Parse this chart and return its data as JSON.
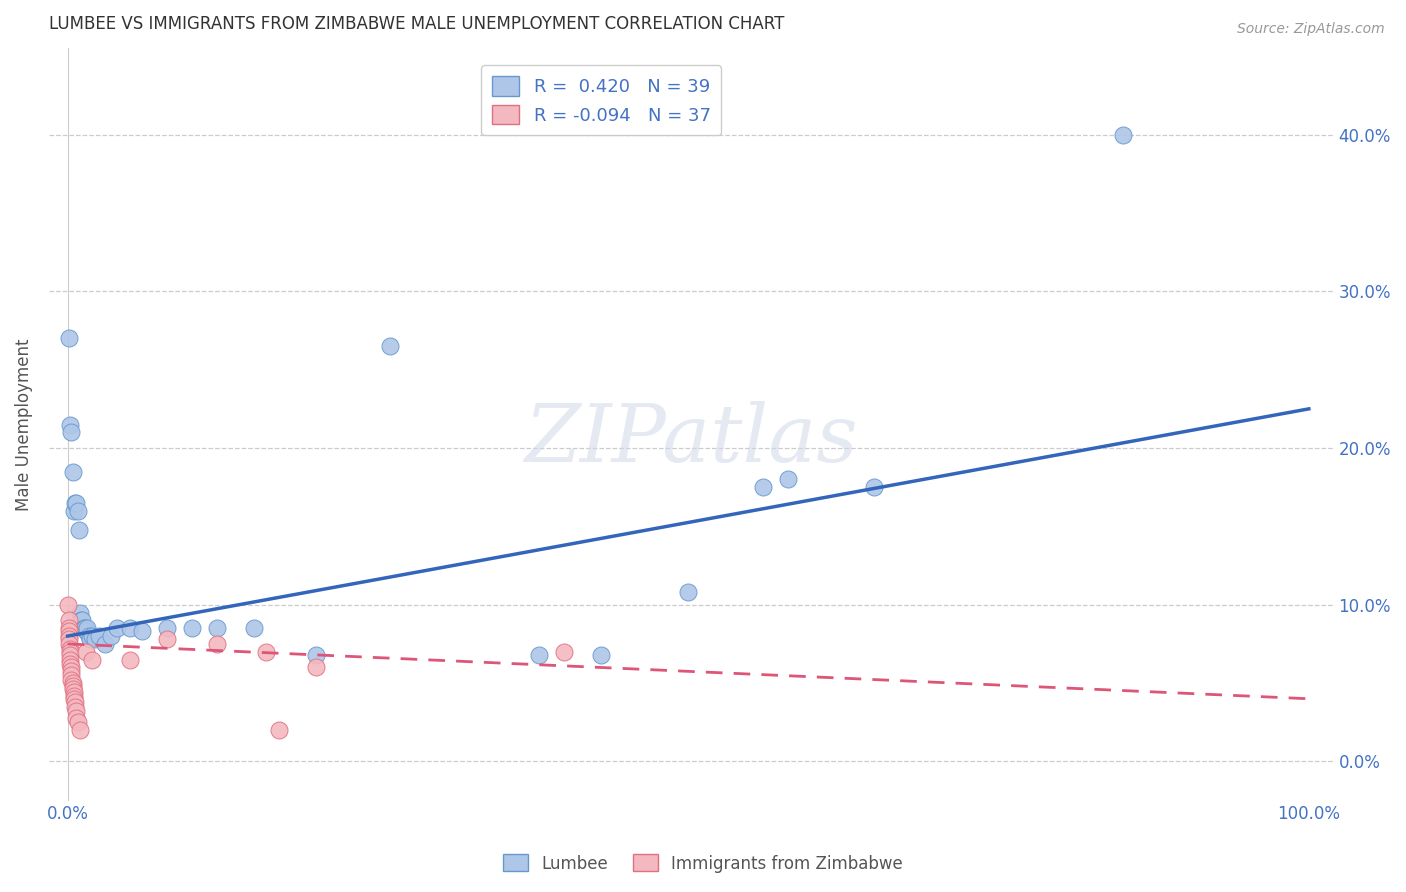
{
  "title": "LUMBEE VS IMMIGRANTS FROM ZIMBABWE MALE UNEMPLOYMENT CORRELATION CHART",
  "source": "Source: ZipAtlas.com",
  "ylabel": "Male Unemployment",
  "watermark": "ZIPatlas",
  "lumbee": {
    "R": 0.42,
    "N": 39,
    "color": "#aec6e8",
    "edge_color": "#6699cc",
    "line_color": "#3366bb",
    "points": [
      [
        0.001,
        0.27
      ],
      [
        0.002,
        0.215
      ],
      [
        0.003,
        0.21
      ],
      [
        0.004,
        0.185
      ],
      [
        0.005,
        0.16
      ],
      [
        0.006,
        0.165
      ],
      [
        0.007,
        0.165
      ],
      [
        0.008,
        0.16
      ],
      [
        0.009,
        0.148
      ],
      [
        0.01,
        0.095
      ],
      [
        0.011,
        0.09
      ],
      [
        0.012,
        0.09
      ],
      [
        0.013,
        0.085
      ],
      [
        0.014,
        0.085
      ],
      [
        0.015,
        0.083
      ],
      [
        0.016,
        0.085
      ],
      [
        0.017,
        0.08
      ],
      [
        0.018,
        0.078
      ],
      [
        0.02,
        0.08
      ],
      [
        0.022,
        0.078
      ],
      [
        0.025,
        0.08
      ],
      [
        0.03,
        0.075
      ],
      [
        0.035,
        0.08
      ],
      [
        0.04,
        0.085
      ],
      [
        0.05,
        0.085
      ],
      [
        0.06,
        0.083
      ],
      [
        0.08,
        0.085
      ],
      [
        0.1,
        0.085
      ],
      [
        0.12,
        0.085
      ],
      [
        0.15,
        0.085
      ],
      [
        0.2,
        0.068
      ],
      [
        0.26,
        0.265
      ],
      [
        0.38,
        0.068
      ],
      [
        0.43,
        0.068
      ],
      [
        0.5,
        0.108
      ],
      [
        0.56,
        0.175
      ],
      [
        0.58,
        0.18
      ],
      [
        0.65,
        0.175
      ],
      [
        0.85,
        0.4
      ]
    ],
    "trend_x": [
      0.0,
      1.0
    ],
    "trend_y": [
      0.08,
      0.225
    ]
  },
  "zimbabwe": {
    "R": -0.094,
    "N": 37,
    "color": "#f4b8c0",
    "edge_color": "#e07080",
    "line_color": "#dd5577",
    "points": [
      [
        0.0,
        0.1
      ],
      [
        0.001,
        0.09
      ],
      [
        0.001,
        0.085
      ],
      [
        0.001,
        0.083
      ],
      [
        0.001,
        0.08
      ],
      [
        0.001,
        0.078
      ],
      [
        0.001,
        0.075
      ],
      [
        0.002,
        0.072
      ],
      [
        0.002,
        0.07
      ],
      [
        0.002,
        0.068
      ],
      [
        0.002,
        0.065
      ],
      [
        0.002,
        0.062
      ],
      [
        0.003,
        0.06
      ],
      [
        0.003,
        0.058
      ],
      [
        0.003,
        0.055
      ],
      [
        0.003,
        0.052
      ],
      [
        0.004,
        0.05
      ],
      [
        0.004,
        0.048
      ],
      [
        0.004,
        0.046
      ],
      [
        0.005,
        0.044
      ],
      [
        0.005,
        0.042
      ],
      [
        0.005,
        0.04
      ],
      [
        0.006,
        0.038
      ],
      [
        0.006,
        0.035
      ],
      [
        0.007,
        0.032
      ],
      [
        0.007,
        0.028
      ],
      [
        0.008,
        0.025
      ],
      [
        0.01,
        0.02
      ],
      [
        0.015,
        0.07
      ],
      [
        0.02,
        0.065
      ],
      [
        0.05,
        0.065
      ],
      [
        0.08,
        0.078
      ],
      [
        0.12,
        0.075
      ],
      [
        0.16,
        0.07
      ],
      [
        0.17,
        0.02
      ],
      [
        0.2,
        0.06
      ],
      [
        0.4,
        0.07
      ]
    ],
    "trend_x": [
      0.0,
      1.0
    ],
    "trend_y": [
      0.075,
      0.04
    ]
  },
  "xlim": [
    -0.015,
    1.02
  ],
  "ylim": [
    -0.025,
    0.455
  ],
  "xticks": [
    0.0,
    0.25,
    0.5,
    0.75,
    1.0
  ],
  "xtick_labels": [
    "0.0%",
    "",
    "",
    "",
    "100.0%"
  ],
  "yticks": [
    0.0,
    0.1,
    0.2,
    0.3,
    0.4
  ],
  "ytick_labels_right": [
    "0.0%",
    "10.0%",
    "20.0%",
    "30.0%",
    "40.0%"
  ],
  "grid_color": "#cccccc",
  "background_color": "#ffffff",
  "tick_color": "#4472c4"
}
